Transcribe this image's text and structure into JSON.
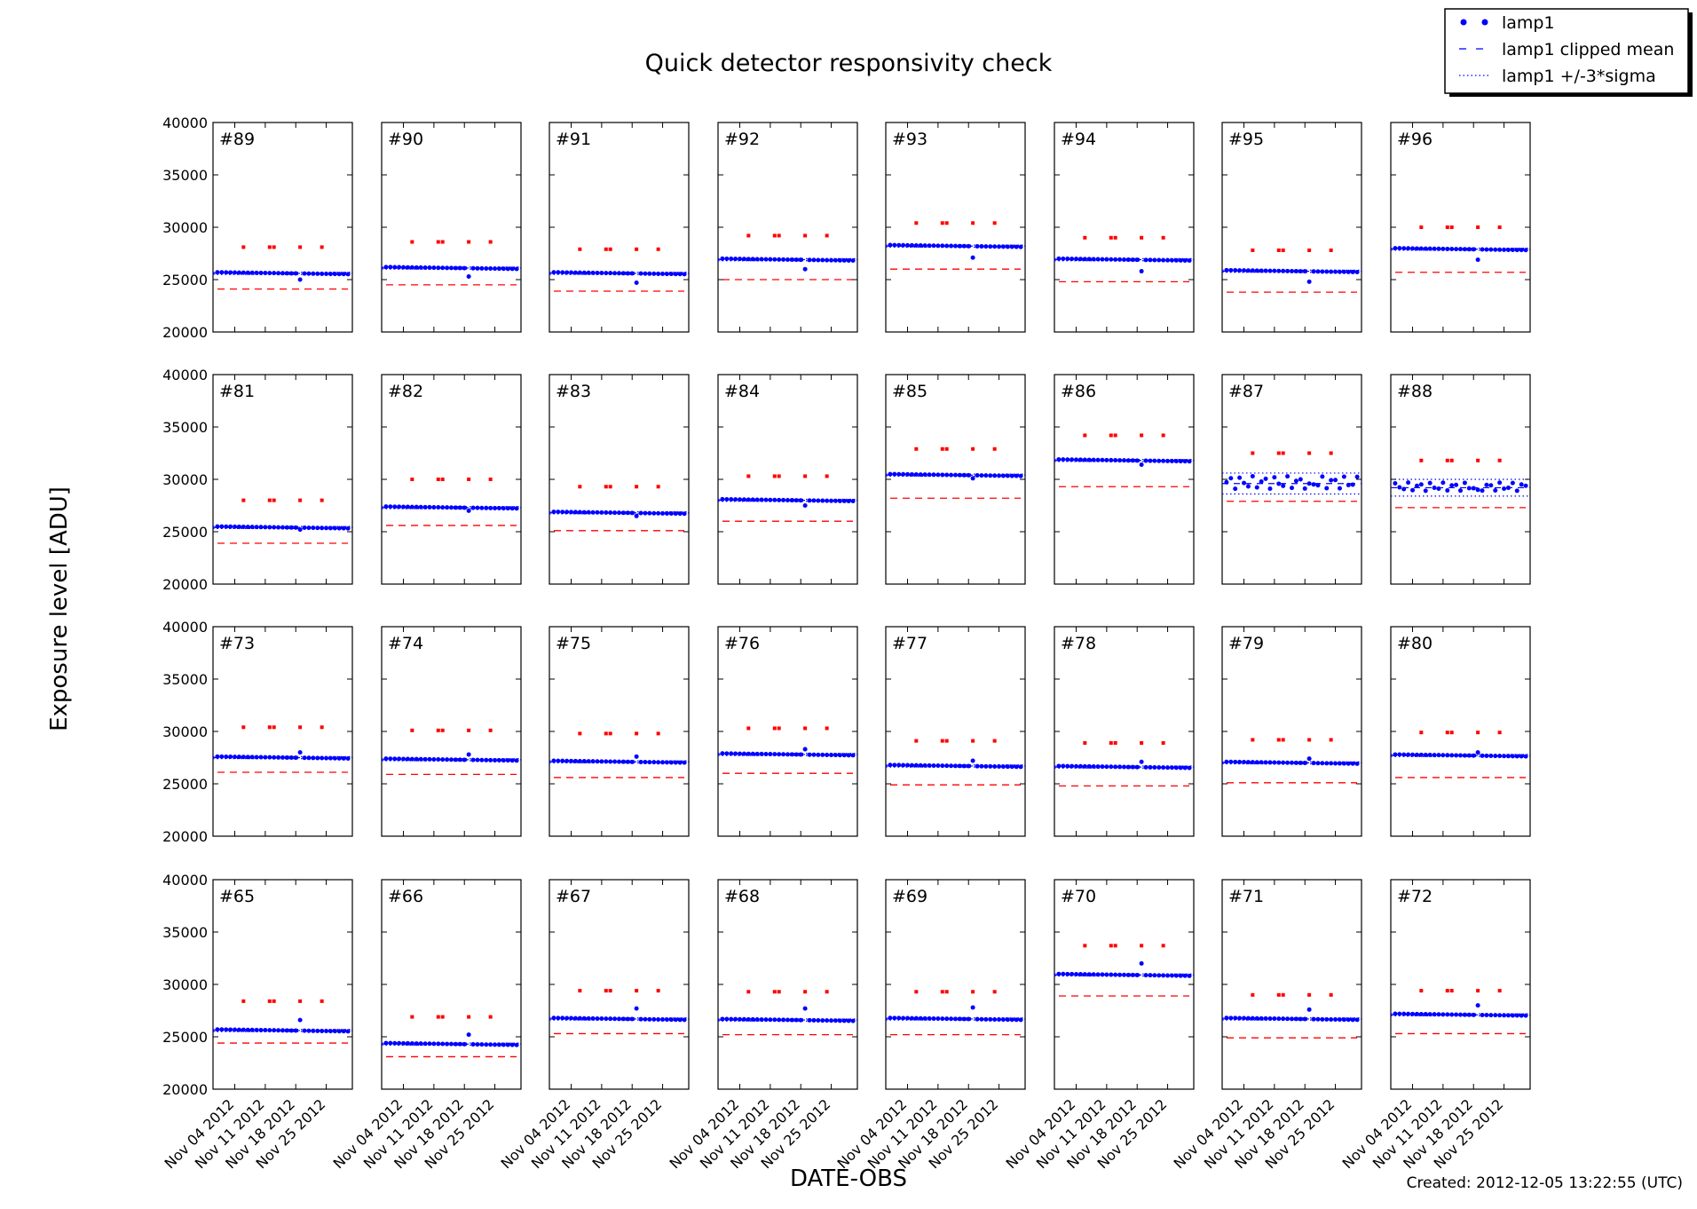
{
  "chart_data": {
    "type": "scatter",
    "title": "Quick detector responsivity check",
    "xlabel": "DATE-OBS",
    "ylabel": "Exposure level [ADU]",
    "footer": "Created: 2012-12-05 13:22:55 (UTC)",
    "ylim": [
      20000,
      40000
    ],
    "yticks": [
      20000,
      25000,
      30000,
      35000,
      40000
    ],
    "xlim": [
      "2012-10-30",
      "2012-12-01"
    ],
    "xticks": [
      "Nov 04 2012",
      "Nov 11 2012",
      "Nov 18 2012",
      "Nov 25 2012"
    ],
    "xtick_dates": [
      "2012-11-04",
      "2012-11-11",
      "2012-11-18",
      "2012-11-25"
    ],
    "grid": false,
    "legend_position": "top-right",
    "legend": [
      {
        "label": "lamp1",
        "style": "dots",
        "color": "#0000ff"
      },
      {
        "label": "lamp1 clipped mean",
        "style": "dashed",
        "color": "#0000ff"
      },
      {
        "label": "lamp1 +/-3*sigma",
        "style": "dotted",
        "color": "#0000ff"
      }
    ],
    "colors": {
      "lamp": "#0000ff",
      "reference": "#ff0000",
      "axes": "#000000"
    },
    "lamp_dates": [
      "2012-10-31",
      "2012-11-01",
      "2012-11-02",
      "2012-11-03",
      "2012-11-04",
      "2012-11-05",
      "2012-11-06",
      "2012-11-07",
      "2012-11-08",
      "2012-11-09",
      "2012-11-10",
      "2012-11-11",
      "2012-11-12",
      "2012-11-13",
      "2012-11-14",
      "2012-11-15",
      "2012-11-16",
      "2012-11-17",
      "2012-11-18",
      "2012-11-19",
      "2012-11-20",
      "2012-11-21",
      "2012-11-22",
      "2012-11-23",
      "2012-11-24",
      "2012-11-25",
      "2012-11-26",
      "2012-11-27",
      "2012-11-28",
      "2012-11-29",
      "2012-11-30"
    ],
    "outlier_date": "2012-11-19",
    "reference_dates": [
      "2012-11-06",
      "2012-11-12",
      "2012-11-13",
      "2012-11-19",
      "2012-11-24"
    ],
    "panels": [
      {
        "label": "#89",
        "lamp_level": 25700,
        "outlier": 25000,
        "clipped_mean": 25600,
        "sigma3": 100,
        "reference_line": 24100,
        "reference_points": 28100
      },
      {
        "label": "#90",
        "lamp_level": 26200,
        "outlier": 25300,
        "clipped_mean": 26100,
        "sigma3": 100,
        "reference_line": 24500,
        "reference_points": 28600
      },
      {
        "label": "#91",
        "lamp_level": 25700,
        "outlier": 24700,
        "clipped_mean": 25600,
        "sigma3": 100,
        "reference_line": 23900,
        "reference_points": 27900
      },
      {
        "label": "#92",
        "lamp_level": 27000,
        "outlier": 26000,
        "clipped_mean": 26900,
        "sigma3": 100,
        "reference_line": 25000,
        "reference_points": 29200
      },
      {
        "label": "#93",
        "lamp_level": 28300,
        "outlier": 27100,
        "clipped_mean": 28200,
        "sigma3": 100,
        "reference_line": 26000,
        "reference_points": 30400
      },
      {
        "label": "#94",
        "lamp_level": 27000,
        "outlier": 25800,
        "clipped_mean": 26900,
        "sigma3": 100,
        "reference_line": 24800,
        "reference_points": 29000
      },
      {
        "label": "#95",
        "lamp_level": 25900,
        "outlier": 24800,
        "clipped_mean": 25800,
        "sigma3": 100,
        "reference_line": 23800,
        "reference_points": 27800
      },
      {
        "label": "#96",
        "lamp_level": 28000,
        "outlier": 26900,
        "clipped_mean": 27900,
        "sigma3": 100,
        "reference_line": 25700,
        "reference_points": 30000
      },
      {
        "label": "#81",
        "lamp_level": 25500,
        "outlier": 25200,
        "clipped_mean": 25400,
        "sigma3": 100,
        "reference_line": 23900,
        "reference_points": 28000
      },
      {
        "label": "#82",
        "lamp_level": 27400,
        "outlier": 27000,
        "clipped_mean": 27300,
        "sigma3": 100,
        "reference_line": 25600,
        "reference_points": 30000
      },
      {
        "label": "#83",
        "lamp_level": 26900,
        "outlier": 26500,
        "clipped_mean": 26800,
        "sigma3": 100,
        "reference_line": 25100,
        "reference_points": 29300
      },
      {
        "label": "#84",
        "lamp_level": 28100,
        "outlier": 27500,
        "clipped_mean": 28000,
        "sigma3": 100,
        "reference_line": 26000,
        "reference_points": 30300
      },
      {
        "label": "#85",
        "lamp_level": 30500,
        "outlier": 30100,
        "clipped_mean": 30400,
        "sigma3": 100,
        "reference_line": 28200,
        "reference_points": 32900
      },
      {
        "label": "#86",
        "lamp_level": 31900,
        "outlier": 31400,
        "clipped_mean": 31800,
        "sigma3": 100,
        "reference_line": 29300,
        "reference_points": 34200
      },
      {
        "label": "#87",
        "lamp_level": 29700,
        "outlier": 29600,
        "clipped_mean": 29600,
        "sigma3": 1000,
        "scatter": 600,
        "reference_line": 27900,
        "reference_points": 32500
      },
      {
        "label": "#88",
        "lamp_level": 29300,
        "outlier": 29000,
        "clipped_mean": 29200,
        "sigma3": 800,
        "scatter": 400,
        "reference_line": 27300,
        "reference_points": 31800
      },
      {
        "label": "#73",
        "lamp_level": 27600,
        "outlier": 28000,
        "clipped_mean": 27500,
        "sigma3": 100,
        "reference_line": 26100,
        "reference_points": 30400
      },
      {
        "label": "#74",
        "lamp_level": 27400,
        "outlier": 27800,
        "clipped_mean": 27300,
        "sigma3": 100,
        "reference_line": 25900,
        "reference_points": 30100
      },
      {
        "label": "#75",
        "lamp_level": 27200,
        "outlier": 27600,
        "clipped_mean": 27100,
        "sigma3": 100,
        "reference_line": 25600,
        "reference_points": 29800
      },
      {
        "label": "#76",
        "lamp_level": 27900,
        "outlier": 28300,
        "clipped_mean": 27800,
        "sigma3": 100,
        "reference_line": 26000,
        "reference_points": 30300
      },
      {
        "label": "#77",
        "lamp_level": 26800,
        "outlier": 27200,
        "clipped_mean": 26700,
        "sigma3": 100,
        "reference_line": 24900,
        "reference_points": 29100
      },
      {
        "label": "#78",
        "lamp_level": 26700,
        "outlier": 27100,
        "clipped_mean": 26600,
        "sigma3": 100,
        "reference_line": 24800,
        "reference_points": 28900
      },
      {
        "label": "#79",
        "lamp_level": 27100,
        "outlier": 27400,
        "clipped_mean": 27000,
        "sigma3": 100,
        "reference_line": 25100,
        "reference_points": 29200
      },
      {
        "label": "#80",
        "lamp_level": 27800,
        "outlier": 28000,
        "clipped_mean": 27700,
        "sigma3": 100,
        "reference_line": 25600,
        "reference_points": 29900
      },
      {
        "label": "#65",
        "lamp_level": 25700,
        "outlier": 26600,
        "clipped_mean": 25600,
        "sigma3": 100,
        "reference_line": 24400,
        "reference_points": 28400
      },
      {
        "label": "#66",
        "lamp_level": 24400,
        "outlier": 25200,
        "clipped_mean": 24300,
        "sigma3": 100,
        "reference_line": 23100,
        "reference_points": 26900
      },
      {
        "label": "#67",
        "lamp_level": 26800,
        "outlier": 27700,
        "clipped_mean": 26700,
        "sigma3": 100,
        "reference_line": 25300,
        "reference_points": 29400
      },
      {
        "label": "#68",
        "lamp_level": 26700,
        "outlier": 27700,
        "clipped_mean": 26600,
        "sigma3": 100,
        "reference_line": 25200,
        "reference_points": 29300
      },
      {
        "label": "#69",
        "lamp_level": 26800,
        "outlier": 27800,
        "clipped_mean": 26700,
        "sigma3": 100,
        "reference_line": 25200,
        "reference_points": 29300
      },
      {
        "label": "#70",
        "lamp_level": 31000,
        "outlier": 32000,
        "clipped_mean": 30900,
        "sigma3": 100,
        "reference_line": 28900,
        "reference_points": 33700
      },
      {
        "label": "#71",
        "lamp_level": 26800,
        "outlier": 27600,
        "clipped_mean": 26700,
        "sigma3": 100,
        "reference_line": 24900,
        "reference_points": 29000
      },
      {
        "label": "#72",
        "lamp_level": 27200,
        "outlier": 28000,
        "clipped_mean": 27100,
        "sigma3": 100,
        "reference_line": 25300,
        "reference_points": 29400
      }
    ]
  }
}
